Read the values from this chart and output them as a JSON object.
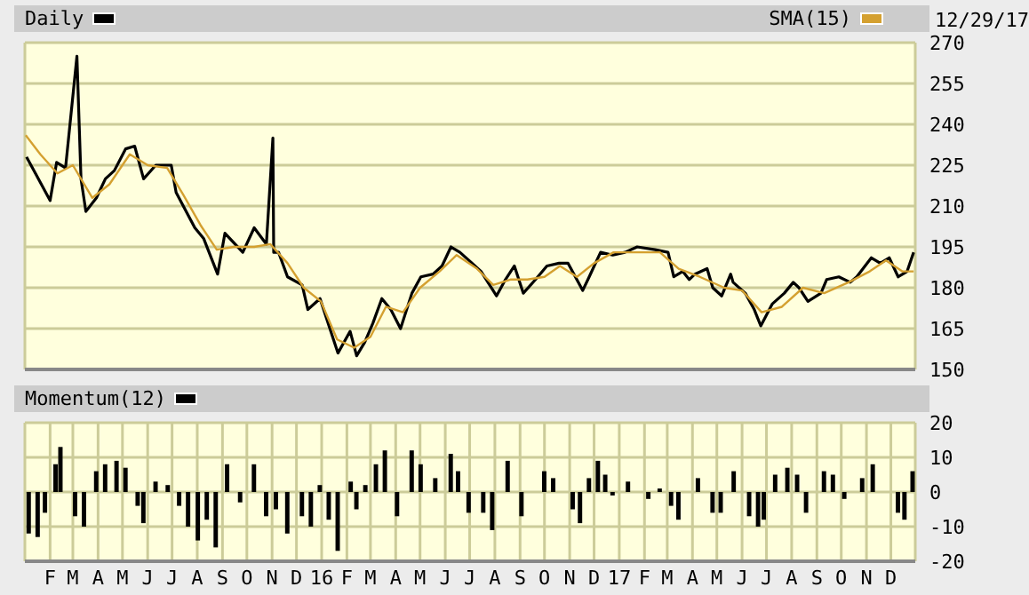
{
  "chart_data": [
    {
      "type": "line",
      "xlim": [
        "2015-01-01",
        "2017-12-31"
      ],
      "ylim": [
        150,
        270
      ],
      "yticks": [
        150,
        165,
        180,
        195,
        210,
        225,
        240,
        255,
        270
      ],
      "grid": true,
      "legend": "top",
      "marker": "none",
      "tick_labels": "y",
      "annotations": [
        "12/29/17"
      ],
      "xticks": [
        {
          "value": "2015-02-01",
          "label": null
        },
        {
          "value": "2015-03-01",
          "label": null
        },
        {
          "value": "2015-04-01",
          "label": null
        },
        {
          "value": "2015-05-01",
          "label": null
        },
        {
          "value": "2015-06-01",
          "label": null
        },
        {
          "value": "2015-07-01",
          "label": null
        },
        {
          "value": "2015-08-01",
          "label": null
        },
        {
          "value": "2015-09-01",
          "label": null
        },
        {
          "value": "2015-10-01",
          "label": null
        },
        {
          "value": "2015-11-01",
          "label": null
        },
        {
          "value": "2015-12-01",
          "label": null
        },
        {
          "value": "2016-01-01",
          "label": null
        },
        {
          "value": "2016-02-01",
          "label": null
        },
        {
          "value": "2016-03-01",
          "label": null
        },
        {
          "value": "2016-04-01",
          "label": null
        },
        {
          "value": "2016-05-01",
          "label": null
        },
        {
          "value": "2016-06-01",
          "label": null
        },
        {
          "value": "2016-07-01",
          "label": null
        },
        {
          "value": "2016-08-01",
          "label": null
        },
        {
          "value": "2016-09-01",
          "label": null
        },
        {
          "value": "2016-10-01",
          "label": null
        },
        {
          "value": "2016-11-01",
          "label": null
        },
        {
          "value": "2016-12-01",
          "label": null
        },
        {
          "value": "2017-01-01",
          "label": null
        },
        {
          "value": "2017-02-01",
          "label": null
        },
        {
          "value": "2017-03-01",
          "label": null
        },
        {
          "value": "2017-04-01",
          "label": null
        },
        {
          "value": "2017-05-01",
          "label": null
        },
        {
          "value": "2017-06-01",
          "label": null
        },
        {
          "value": "2017-07-01",
          "label": null
        },
        {
          "value": "2017-08-01",
          "label": null
        },
        {
          "value": "2017-09-01",
          "label": null
        },
        {
          "value": "2017-10-01",
          "label": null
        },
        {
          "value": "2017-11-01",
          "label": null
        },
        {
          "value": "2017-12-01",
          "label": null
        }
      ],
      "series": [
        {
          "name": "Daily",
          "color": "#000000",
          "x": [
            "2015-01-03",
            "2015-01-14",
            "2015-02-01",
            "2015-02-09",
            "2015-02-20",
            "2015-03-06",
            "2015-03-11",
            "2015-03-17",
            "2015-03-30",
            "2015-04-10",
            "2015-04-21",
            "2015-05-05",
            "2015-05-16",
            "2015-05-27",
            "2015-06-11",
            "2015-06-30",
            "2015-07-06",
            "2015-07-29",
            "2015-08-09",
            "2015-08-26",
            "2015-09-04",
            "2015-09-26",
            "2015-10-10",
            "2015-10-25",
            "2015-11-02",
            "2015-11-03",
            "2015-11-09",
            "2015-11-20",
            "2015-12-08",
            "2015-12-15",
            "2015-12-30",
            "2016-01-10",
            "2016-01-21",
            "2016-02-05",
            "2016-02-13",
            "2016-02-23",
            "2016-03-04",
            "2016-03-15",
            "2016-03-26",
            "2016-04-07",
            "2016-04-21",
            "2016-05-02",
            "2016-05-17",
            "2016-05-28",
            "2016-06-08",
            "2016-06-19",
            "2016-07-04",
            "2016-07-15",
            "2016-08-03",
            "2016-08-14",
            "2016-08-25",
            "2016-09-05",
            "2016-09-20",
            "2016-10-04",
            "2016-10-19",
            "2016-10-30",
            "2016-11-17",
            "2016-11-25",
            "2016-12-09",
            "2016-12-24",
            "2017-01-08",
            "2017-01-23",
            "2017-02-14",
            "2017-03-02",
            "2017-03-09",
            "2017-03-20",
            "2017-03-28",
            "2017-04-04",
            "2017-04-19",
            "2017-04-26",
            "2017-05-07",
            "2017-05-18",
            "2017-05-21",
            "2017-06-05",
            "2017-06-16",
            "2017-06-24",
            "2017-07-08",
            "2017-07-23",
            "2017-08-03",
            "2017-08-10",
            "2017-08-21",
            "2017-09-06",
            "2017-09-13",
            "2017-09-28",
            "2017-10-12",
            "2017-10-20",
            "2017-11-07",
            "2017-11-18",
            "2017-11-29",
            "2017-12-10",
            "2017-12-21",
            "2017-12-29"
          ],
          "values": [
            228,
            222,
            212,
            226,
            224,
            265,
            220,
            208,
            213,
            220,
            223,
            231,
            232,
            220,
            225,
            225,
            215,
            202,
            198,
            185,
            200,
            193,
            202,
            196,
            235,
            193,
            193,
            184,
            181,
            172,
            176,
            166,
            156,
            164,
            155,
            160,
            167,
            176,
            172,
            165,
            178,
            184,
            185,
            188,
            195,
            193,
            189,
            186,
            177,
            183,
            188,
            178,
            183,
            188,
            189,
            189,
            179,
            184,
            193,
            192,
            193,
            195,
            194,
            193,
            184,
            186,
            183,
            185,
            187,
            180,
            177,
            185,
            182,
            178,
            172,
            166,
            174,
            178,
            182,
            180,
            175,
            178,
            183,
            184,
            182,
            184,
            191,
            189,
            191,
            184,
            186,
            193
          ]
        },
        {
          "name": "SMA(15)",
          "color": "#d4a030",
          "x": [
            "2015-01-02",
            "2015-01-20",
            "2015-02-10",
            "2015-03-01",
            "2015-03-25",
            "2015-04-15",
            "2015-05-10",
            "2015-06-01",
            "2015-06-25",
            "2015-07-15",
            "2015-08-05",
            "2015-08-25",
            "2015-09-15",
            "2015-10-10",
            "2015-10-30",
            "2015-11-20",
            "2015-12-10",
            "2015-12-31",
            "2016-01-20",
            "2016-02-10",
            "2016-03-01",
            "2016-03-20",
            "2016-04-10",
            "2016-05-01",
            "2016-05-25",
            "2016-06-15",
            "2016-07-10",
            "2016-07-30",
            "2016-08-20",
            "2016-09-10",
            "2016-10-01",
            "2016-10-20",
            "2016-11-10",
            "2016-12-01",
            "2016-12-25",
            "2017-01-20",
            "2017-02-20",
            "2017-03-15",
            "2017-04-10",
            "2017-05-10",
            "2017-06-01",
            "2017-06-25",
            "2017-07-20",
            "2017-08-15",
            "2017-09-10",
            "2017-10-10",
            "2017-11-05",
            "2017-11-25",
            "2017-12-15",
            "2017-12-29"
          ],
          "values": [
            236,
            229,
            222,
            225,
            213,
            218,
            229,
            225,
            224,
            214,
            203,
            194,
            195,
            195,
            196,
            189,
            180,
            175,
            161,
            158,
            162,
            173,
            171,
            180,
            186,
            192,
            187,
            181,
            183,
            183,
            184,
            188,
            184,
            189,
            193,
            193,
            193,
            187,
            184,
            180,
            179,
            171,
            173,
            180,
            178,
            182,
            186,
            190,
            186,
            186
          ]
        }
      ]
    },
    {
      "type": "bar",
      "xlim": [
        "2015-01-01",
        "2017-12-31"
      ],
      "ylim": [
        -20,
        20
      ],
      "yticks": [
        -20,
        -10,
        0,
        10,
        20
      ],
      "grid": true,
      "legend": "top",
      "xticks": [
        {
          "value": "2015-02-01",
          "label": "F"
        },
        {
          "value": "2015-03-01",
          "label": "M"
        },
        {
          "value": "2015-04-01",
          "label": "A"
        },
        {
          "value": "2015-05-01",
          "label": "M"
        },
        {
          "value": "2015-06-01",
          "label": "J"
        },
        {
          "value": "2015-07-01",
          "label": "J"
        },
        {
          "value": "2015-08-01",
          "label": "A"
        },
        {
          "value": "2015-09-01",
          "label": "S"
        },
        {
          "value": "2015-10-01",
          "label": "O"
        },
        {
          "value": "2015-11-01",
          "label": "N"
        },
        {
          "value": "2015-12-01",
          "label": "D"
        },
        {
          "value": "2016-01-01",
          "label": "16"
        },
        {
          "value": "2016-02-01",
          "label": "F"
        },
        {
          "value": "2016-03-01",
          "label": "M"
        },
        {
          "value": "2016-04-01",
          "label": "A"
        },
        {
          "value": "2016-05-01",
          "label": "M"
        },
        {
          "value": "2016-06-01",
          "label": "J"
        },
        {
          "value": "2016-07-01",
          "label": "J"
        },
        {
          "value": "2016-08-01",
          "label": "A"
        },
        {
          "value": "2016-09-01",
          "label": "S"
        },
        {
          "value": "2016-10-01",
          "label": "O"
        },
        {
          "value": "2016-11-01",
          "label": "N"
        },
        {
          "value": "2016-12-01",
          "label": "D"
        },
        {
          "value": "2017-01-01",
          "label": "17"
        },
        {
          "value": "2017-02-01",
          "label": "F"
        },
        {
          "value": "2017-03-01",
          "label": "M"
        },
        {
          "value": "2017-04-01",
          "label": "A"
        },
        {
          "value": "2017-05-01",
          "label": "M"
        },
        {
          "value": "2017-06-01",
          "label": "J"
        },
        {
          "value": "2017-07-01",
          "label": "J"
        },
        {
          "value": "2017-08-01",
          "label": "A"
        },
        {
          "value": "2017-09-01",
          "label": "S"
        },
        {
          "value": "2017-10-01",
          "label": "O"
        },
        {
          "value": "2017-11-01",
          "label": "N"
        },
        {
          "value": "2017-12-01",
          "label": "D"
        }
      ],
      "series": [
        {
          "name": "Momentum(12)",
          "color": "#000000",
          "x": [
            "2015-01-06",
            "2015-01-17",
            "2015-01-26",
            "2015-02-08",
            "2015-02-14",
            "2015-03-04",
            "2015-03-15",
            "2015-03-30",
            "2015-04-10",
            "2015-04-24",
            "2015-05-05",
            "2015-05-20",
            "2015-05-27",
            "2015-06-11",
            "2015-06-26",
            "2015-07-10",
            "2015-07-21",
            "2015-08-02",
            "2015-08-13",
            "2015-08-24",
            "2015-09-07",
            "2015-09-23",
            "2015-10-10",
            "2015-10-25",
            "2015-11-06",
            "2015-11-20",
            "2015-12-08",
            "2015-12-19",
            "2015-12-30",
            "2016-01-10",
            "2016-01-21",
            "2016-02-06",
            "2016-02-13",
            "2016-02-24",
            "2016-03-08",
            "2016-03-19",
            "2016-04-03",
            "2016-04-21",
            "2016-05-02",
            "2016-05-20",
            "2016-06-08",
            "2016-06-17",
            "2016-06-30",
            "2016-07-18",
            "2016-07-29",
            "2016-08-17",
            "2016-09-03",
            "2016-10-01",
            "2016-10-12",
            "2016-11-05",
            "2016-11-14",
            "2016-11-25",
            "2016-12-06",
            "2016-12-15",
            "2016-12-24",
            "2017-01-12",
            "2017-02-06",
            "2017-02-20",
            "2017-03-06",
            "2017-03-15",
            "2017-04-08",
            "2017-04-26",
            "2017-05-06",
            "2017-05-22",
            "2017-06-10",
            "2017-06-21",
            "2017-06-28",
            "2017-07-12",
            "2017-07-27",
            "2017-08-08",
            "2017-08-19",
            "2017-09-10",
            "2017-09-21",
            "2017-10-05",
            "2017-10-27",
            "2017-11-09",
            "2017-12-10",
            "2017-12-18",
            "2017-12-28"
          ],
          "values": [
            -12,
            -13,
            -6,
            8,
            13,
            -7,
            -10,
            6,
            8,
            9,
            7,
            -4,
            -9,
            3,
            2,
            -4,
            -10,
            -14,
            -8,
            -16,
            8,
            -3,
            8,
            -7,
            -5,
            -12,
            -7,
            -10,
            2,
            -8,
            -17,
            3,
            -5,
            2,
            8,
            12,
            -7,
            12,
            8,
            4,
            11,
            6,
            -6,
            -6,
            -11,
            9,
            -7,
            6,
            4,
            -5,
            -9,
            4,
            9,
            5,
            -1,
            3,
            -2,
            1,
            -4,
            -8,
            4,
            -6,
            -6,
            6,
            -7,
            -10,
            -8,
            5,
            7,
            5,
            -6,
            6,
            5,
            -2,
            4,
            8,
            -6,
            -8,
            6
          ]
        }
      ]
    }
  ]
}
